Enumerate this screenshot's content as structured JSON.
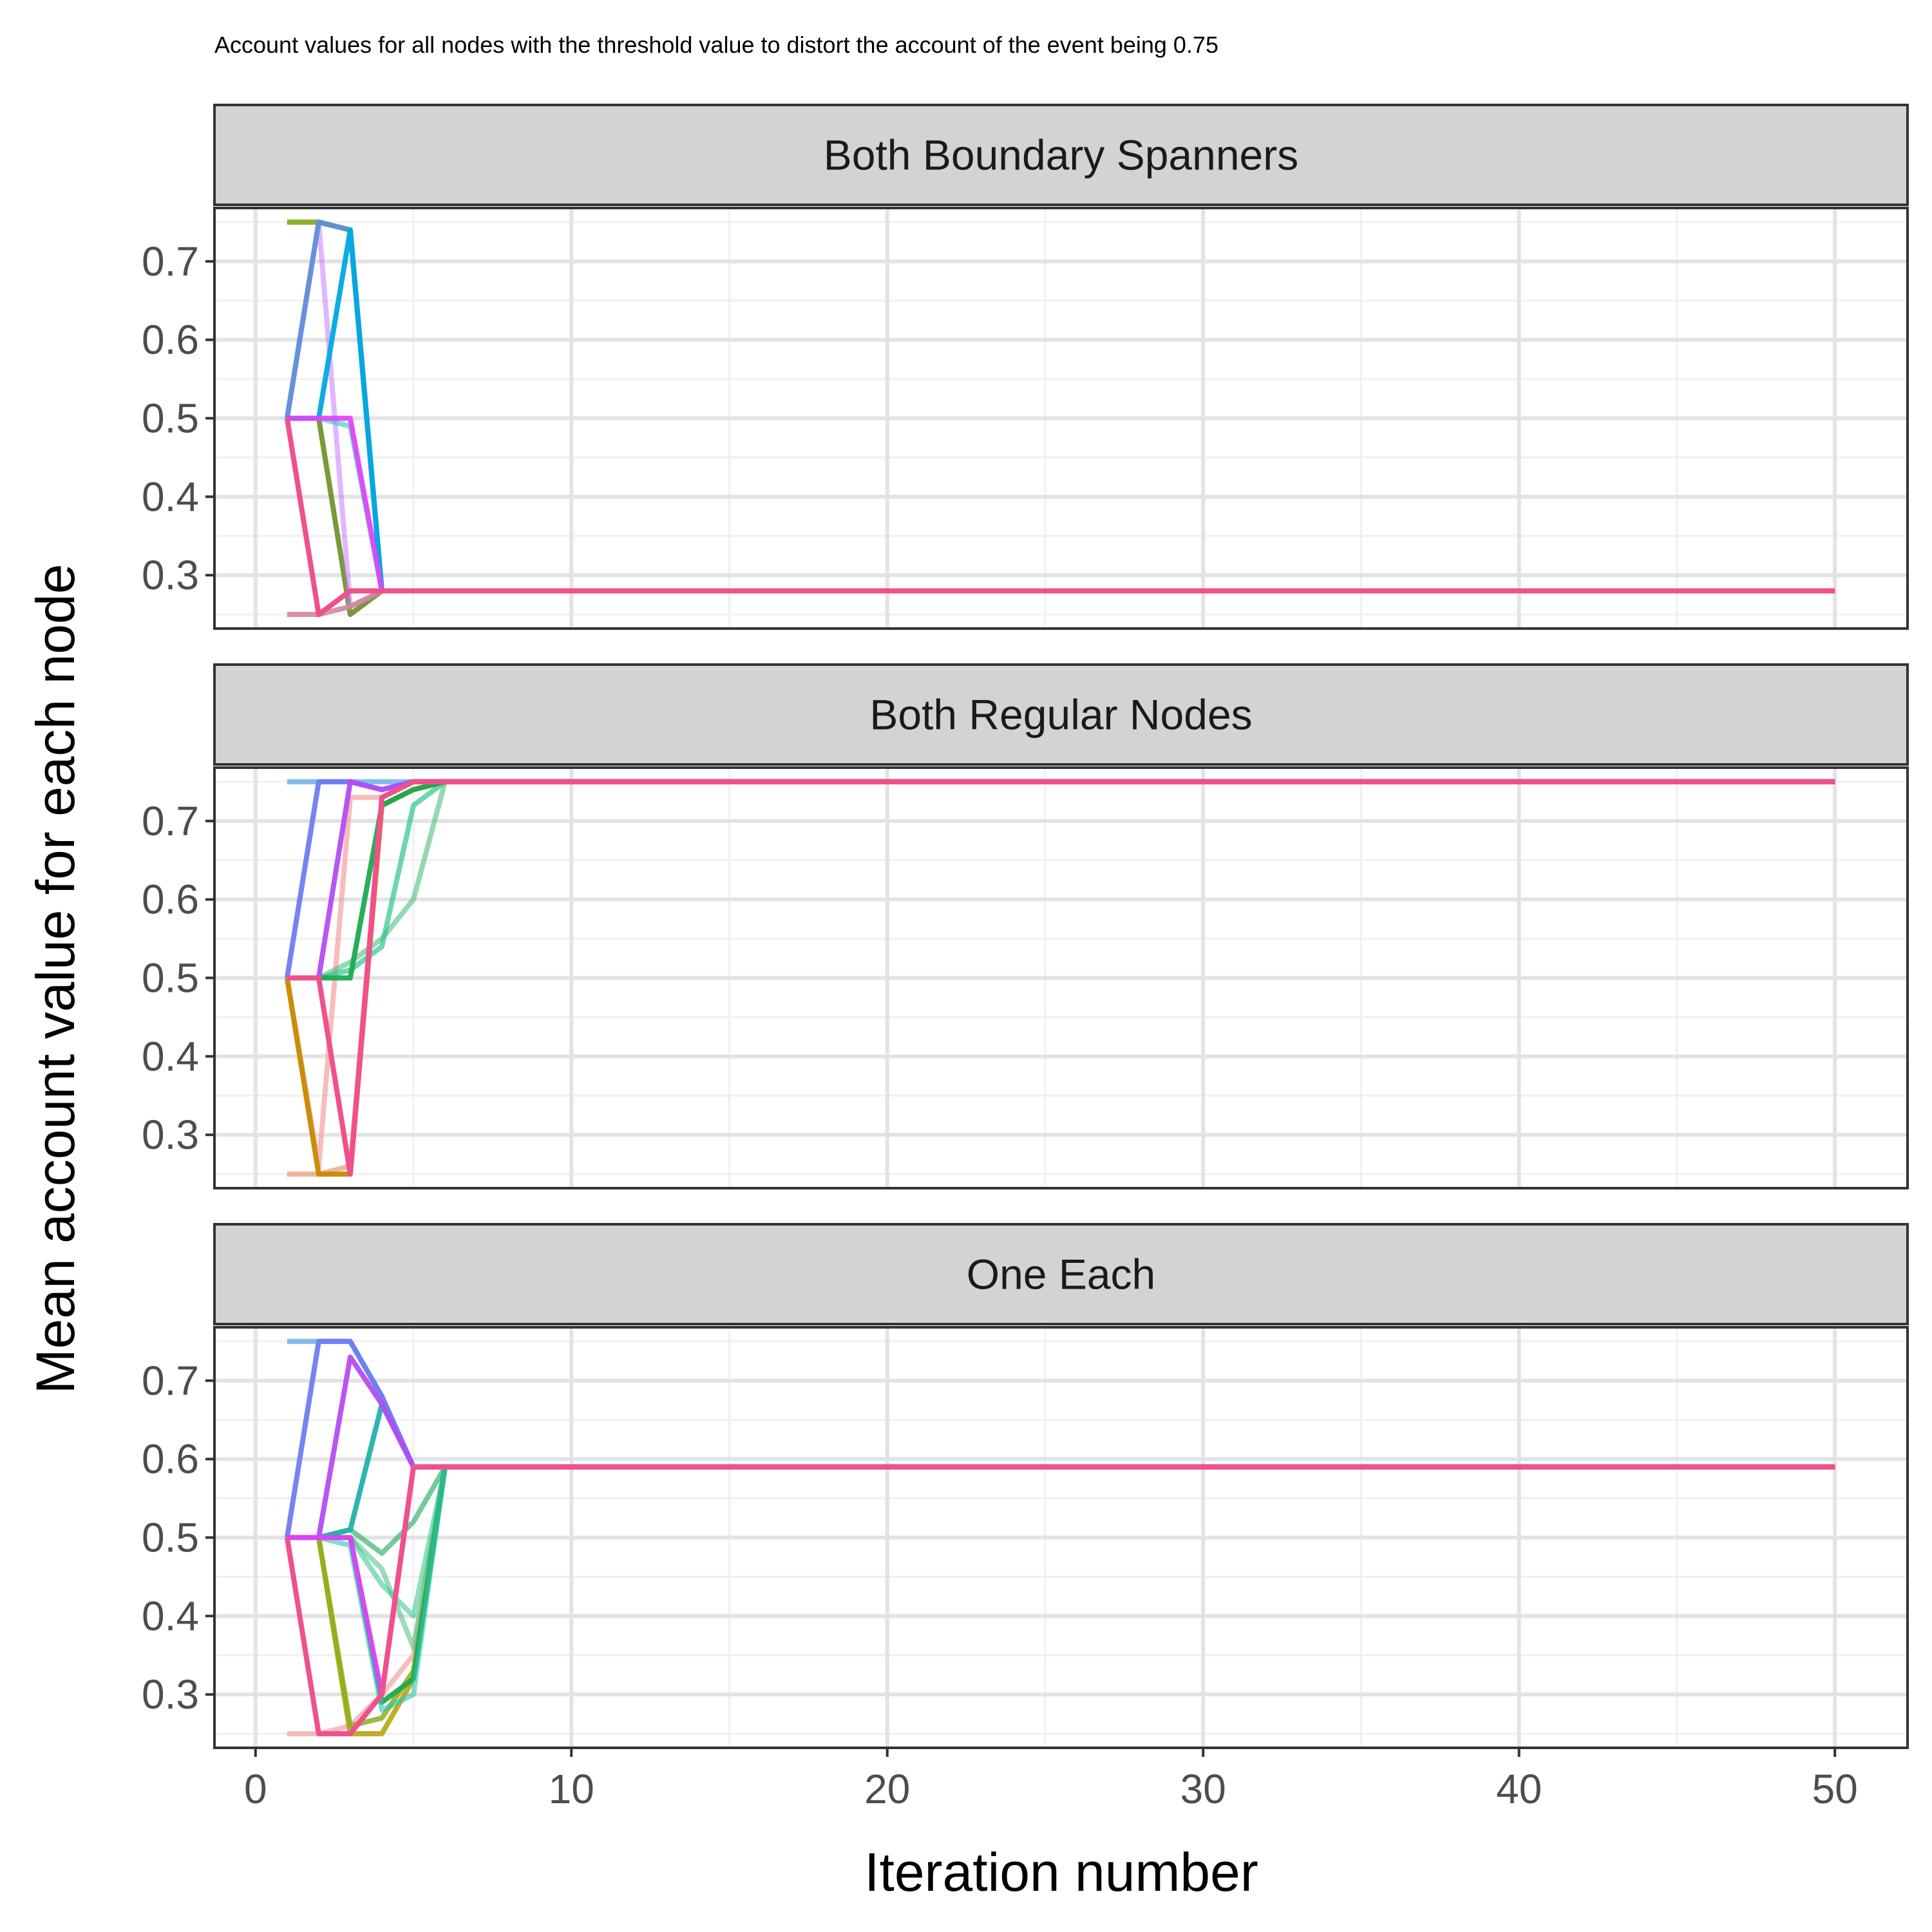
{
  "chart_data": {
    "type": "line",
    "title": "Account values for all nodes with the threshold value to distort the account of the event being 0.75",
    "xlabel": "Iteration number",
    "ylabel": "Mean account value for each node",
    "xlim": [
      -1.3,
      52.3
    ],
    "ylim": [
      0.232,
      0.768
    ],
    "x_ticks": [
      0,
      10,
      20,
      30,
      40,
      50
    ],
    "x_tick_labels": [
      "0",
      "10",
      "20",
      "30",
      "40",
      "50"
    ],
    "y_ticks": [
      0.3,
      0.4,
      0.5,
      0.6,
      0.7
    ],
    "y_tick_labels": [
      "0.3",
      "0.4",
      "0.5",
      "0.6",
      "0.7"
    ],
    "grid": true,
    "legend": "none",
    "facets": [
      {
        "label": "Both Boundary Spanners",
        "series": [
          {
            "color": "#4ECDC4",
            "opacity": 0.75,
            "x": [
              1,
              2,
              3,
              4,
              5,
              50
            ],
            "y": [
              0.75,
              0.75,
              0.74,
              0.28,
              0.28,
              0.28
            ]
          },
          {
            "color": "#8FAE1B",
            "opacity": 0.9,
            "x": [
              1,
              2,
              3,
              4,
              5,
              50
            ],
            "y": [
              0.75,
              0.75,
              0.74,
              0.28,
              0.28,
              0.28
            ]
          },
          {
            "color": "#6B8E23",
            "opacity": 0.9,
            "x": [
              1,
              2,
              3,
              4,
              5,
              50
            ],
            "y": [
              0.5,
              0.5,
              0.25,
              0.28,
              0.28,
              0.28
            ]
          },
          {
            "color": "#C77CFF",
            "opacity": 0.55,
            "x": [
              1,
              2,
              3,
              4,
              5,
              50
            ],
            "y": [
              0.5,
              0.75,
              0.26,
              0.28,
              0.28,
              0.28
            ]
          },
          {
            "color": "#5E8FD8",
            "opacity": 0.95,
            "x": [
              1,
              2,
              3,
              4,
              5,
              50
            ],
            "y": [
              0.5,
              0.75,
              0.74,
              0.28,
              0.28,
              0.28
            ]
          },
          {
            "color": "#00A9E0",
            "opacity": 0.95,
            "x": [
              1,
              2,
              3,
              4,
              5,
              50
            ],
            "y": [
              0.5,
              0.5,
              0.74,
              0.28,
              0.28,
              0.28
            ]
          },
          {
            "color": "#9B9BE8",
            "opacity": 0.75,
            "x": [
              1,
              2,
              3,
              4,
              5,
              50
            ],
            "y": [
              0.25,
              0.25,
              0.26,
              0.28,
              0.28,
              0.28
            ]
          },
          {
            "color": "#2EC4B6",
            "opacity": 0.6,
            "x": [
              1,
              2,
              3,
              4,
              5,
              50
            ],
            "y": [
              0.5,
              0.5,
              0.49,
              0.28,
              0.28,
              0.28
            ]
          },
          {
            "color": "#F8766D",
            "opacity": 0.55,
            "x": [
              1,
              2,
              3,
              4,
              5,
              50
            ],
            "y": [
              0.25,
              0.25,
              0.26,
              0.28,
              0.28,
              0.28
            ]
          },
          {
            "color": "#E040FB",
            "opacity": 0.9,
            "x": [
              1,
              2,
              3,
              4,
              5,
              50
            ],
            "y": [
              0.5,
              0.5,
              0.5,
              0.28,
              0.28,
              0.28
            ]
          },
          {
            "color": "#F0508C",
            "opacity": 1.0,
            "x": [
              1,
              2,
              3,
              4,
              5,
              50
            ],
            "y": [
              0.5,
              0.25,
              0.28,
              0.28,
              0.28,
              0.28
            ]
          }
        ]
      },
      {
        "label": "Both Regular Nodes",
        "series": [
          {
            "color": "#5CA8E8",
            "opacity": 0.75,
            "x": [
              1,
              2,
              3,
              4,
              5,
              6,
              50
            ],
            "y": [
              0.75,
              0.75,
              0.75,
              0.75,
              0.75,
              0.75,
              0.75
            ]
          },
          {
            "color": "#E8A07A",
            "opacity": 0.75,
            "x": [
              1,
              2,
              3,
              4,
              5,
              6,
              50
            ],
            "y": [
              0.25,
              0.25,
              0.26,
              0.73,
              0.75,
              0.75,
              0.75
            ]
          },
          {
            "color": "#F4A6A6",
            "opacity": 0.75,
            "x": [
              1,
              2,
              3,
              4,
              5,
              6,
              50
            ],
            "y": [
              0.5,
              0.26,
              0.73,
              0.73,
              0.75,
              0.75,
              0.75
            ]
          },
          {
            "color": "#C78A00",
            "opacity": 0.95,
            "x": [
              1,
              2,
              3,
              4,
              5,
              6,
              50
            ],
            "y": [
              0.5,
              0.25,
              0.25,
              0.72,
              0.74,
              0.75,
              0.75
            ]
          },
          {
            "color": "#4CBF7A",
            "opacity": 0.6,
            "x": [
              1,
              2,
              3,
              4,
              5,
              6,
              50
            ],
            "y": [
              0.5,
              0.5,
              0.52,
              0.55,
              0.6,
              0.75,
              0.75
            ]
          },
          {
            "color": "#2EC48C",
            "opacity": 0.7,
            "x": [
              1,
              2,
              3,
              4,
              5,
              6,
              50
            ],
            "y": [
              0.5,
              0.5,
              0.51,
              0.54,
              0.72,
              0.75,
              0.75
            ]
          },
          {
            "color": "#1DAA4F",
            "opacity": 0.95,
            "x": [
              1,
              2,
              3,
              4,
              5,
              6,
              50
            ],
            "y": [
              0.5,
              0.5,
              0.5,
              0.72,
              0.74,
              0.75,
              0.75
            ]
          },
          {
            "color": "#6F7CF2",
            "opacity": 0.95,
            "x": [
              1,
              2,
              3,
              4,
              5,
              6,
              50
            ],
            "y": [
              0.5,
              0.75,
              0.75,
              0.74,
              0.75,
              0.75,
              0.75
            ]
          },
          {
            "color": "#B44CF2",
            "opacity": 0.95,
            "x": [
              1,
              2,
              3,
              4,
              5,
              6,
              50
            ],
            "y": [
              0.5,
              0.5,
              0.75,
              0.74,
              0.75,
              0.75,
              0.75
            ]
          },
          {
            "color": "#F0508C",
            "opacity": 1.0,
            "x": [
              1,
              2,
              3,
              4,
              5,
              6,
              50
            ],
            "y": [
              0.5,
              0.5,
              0.25,
              0.73,
              0.75,
              0.75,
              0.75
            ]
          }
        ]
      },
      {
        "label": "One Each",
        "series": [
          {
            "color": "#5CA8E8",
            "opacity": 0.75,
            "x": [
              1,
              2,
              3,
              4,
              5,
              6,
              50
            ],
            "y": [
              0.75,
              0.75,
              0.75,
              0.68,
              0.59,
              0.59,
              0.59
            ]
          },
          {
            "color": "#F4A6A6",
            "opacity": 0.75,
            "x": [
              1,
              2,
              3,
              4,
              5,
              6,
              50
            ],
            "y": [
              0.25,
              0.25,
              0.26,
              0.3,
              0.35,
              0.59,
              0.59
            ]
          },
          {
            "color": "#B5A000",
            "opacity": 0.85,
            "x": [
              1,
              2,
              3,
              4,
              5,
              6,
              50
            ],
            "y": [
              0.5,
              0.5,
              0.25,
              0.25,
              0.32,
              0.59,
              0.59
            ]
          },
          {
            "color": "#8FAE1B",
            "opacity": 0.85,
            "x": [
              1,
              2,
              3,
              4,
              5,
              6,
              50
            ],
            "y": [
              0.5,
              0.5,
              0.26,
              0.27,
              0.33,
              0.59,
              0.59
            ]
          },
          {
            "color": "#4CBF7A",
            "opacity": 0.55,
            "x": [
              1,
              2,
              3,
              4,
              5,
              6,
              50
            ],
            "y": [
              0.5,
              0.5,
              0.5,
              0.46,
              0.36,
              0.59,
              0.59
            ]
          },
          {
            "color": "#2EC48C",
            "opacity": 0.55,
            "x": [
              1,
              2,
              3,
              4,
              5,
              6,
              50
            ],
            "y": [
              0.5,
              0.5,
              0.5,
              0.44,
              0.4,
              0.59,
              0.59
            ]
          },
          {
            "color": "#3CB371",
            "opacity": 0.7,
            "x": [
              1,
              2,
              3,
              4,
              5,
              6,
              50
            ],
            "y": [
              0.5,
              0.5,
              0.51,
              0.48,
              0.52,
              0.59,
              0.59
            ]
          },
          {
            "color": "#1DAA4F",
            "opacity": 0.95,
            "x": [
              1,
              2,
              3,
              4,
              5,
              6,
              50
            ],
            "y": [
              0.5,
              0.5,
              0.5,
              0.29,
              0.32,
              0.59,
              0.59
            ]
          },
          {
            "color": "#20B2AA",
            "opacity": 0.95,
            "x": [
              1,
              2,
              3,
              4,
              5,
              6,
              50
            ],
            "y": [
              0.5,
              0.5,
              0.51,
              0.67,
              0.59,
              0.59,
              0.59
            ]
          },
          {
            "color": "#2EC4B6",
            "opacity": 0.6,
            "x": [
              1,
              2,
              3,
              4,
              5,
              6,
              50
            ],
            "y": [
              0.5,
              0.5,
              0.49,
              0.28,
              0.3,
              0.59,
              0.59
            ]
          },
          {
            "color": "#6F7CF2",
            "opacity": 0.95,
            "x": [
              1,
              2,
              3,
              4,
              5,
              6,
              50
            ],
            "y": [
              0.5,
              0.75,
              0.75,
              0.68,
              0.59,
              0.59,
              0.59
            ]
          },
          {
            "color": "#B44CF2",
            "opacity": 0.95,
            "x": [
              1,
              2,
              3,
              4,
              5,
              6,
              50
            ],
            "y": [
              0.5,
              0.5,
              0.73,
              0.67,
              0.59,
              0.59,
              0.59
            ]
          },
          {
            "color": "#E040FB",
            "opacity": 0.9,
            "x": [
              1,
              2,
              3,
              4,
              5,
              6,
              50
            ],
            "y": [
              0.5,
              0.5,
              0.5,
              0.3,
              0.59,
              0.59,
              0.59
            ]
          },
          {
            "color": "#F0508C",
            "opacity": 1.0,
            "x": [
              1,
              2,
              3,
              4,
              5,
              6,
              50
            ],
            "y": [
              0.5,
              0.25,
              0.25,
              0.3,
              0.59,
              0.59,
              0.59
            ]
          }
        ]
      }
    ]
  },
  "colors": {
    "panel_border": "#333333",
    "strip_fill": "#D3D3D3",
    "grid_major": "#E3E3E3",
    "grid_minor": "#F0F0F0"
  }
}
